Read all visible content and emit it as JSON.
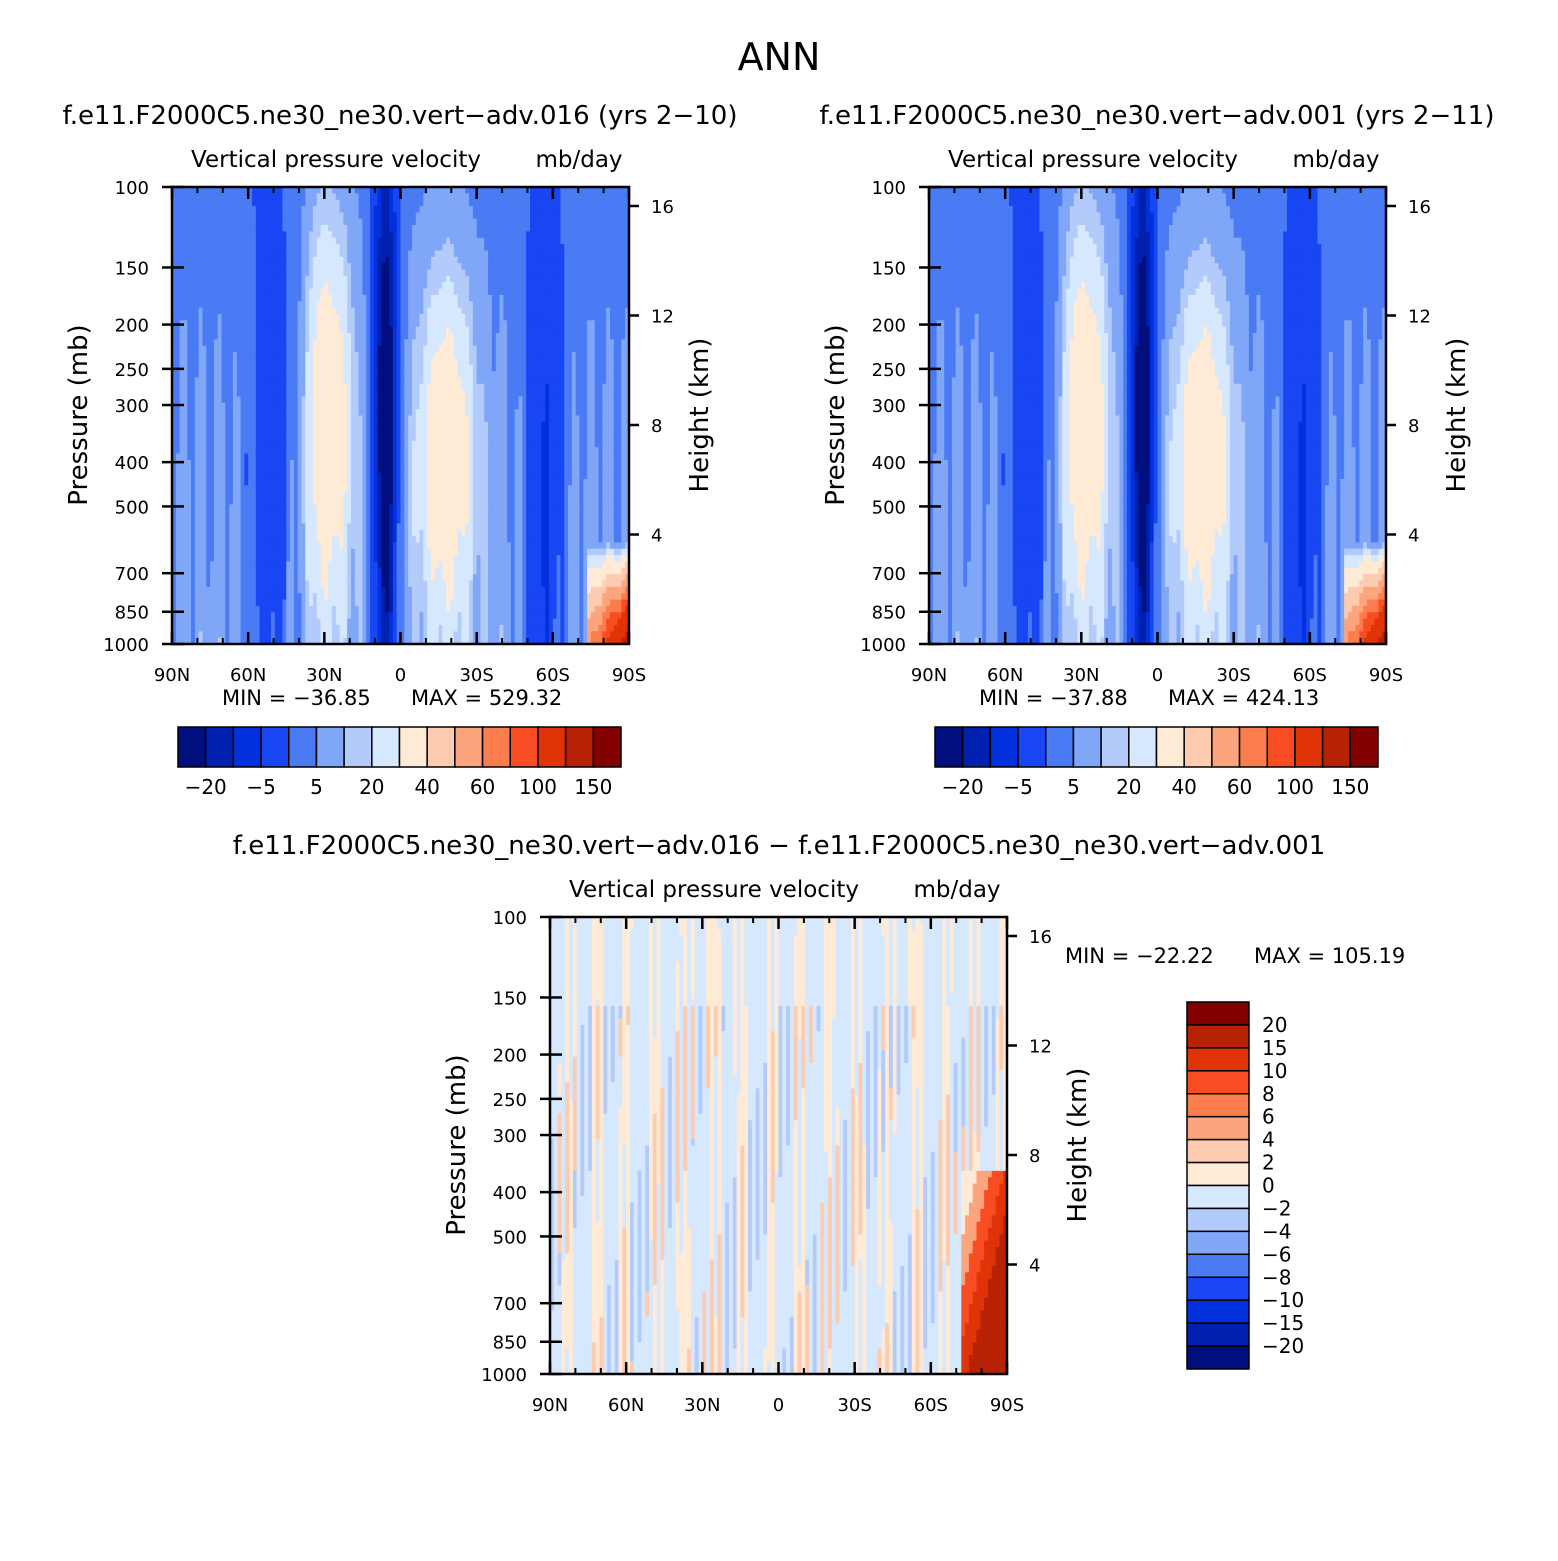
{
  "figure": {
    "title": "ANN"
  },
  "chart_data": [
    {
      "type": "heatmap",
      "title": "f.e11.F2000C5.ne30_ne30.vert−adv.016 (yrs 2−10)",
      "subtitle": "Vertical pressure velocity",
      "units": "mb/day",
      "ylabel": "Pressure (mb)",
      "y2label": "Height (km)",
      "xticks": [
        "90N",
        "60N",
        "30N",
        "0",
        "30S",
        "60S",
        "90S"
      ],
      "yticks": [
        100,
        150,
        200,
        250,
        300,
        400,
        500,
        700,
        850,
        1000
      ],
      "y2ticks": [
        16,
        12,
        8,
        4
      ],
      "xlim": [
        "90N",
        "90S"
      ],
      "ylim": [
        1000,
        100
      ],
      "yscale": "log",
      "min_label": "MIN = −36.85",
      "max_label": "MAX = 529.32",
      "min": -36.85,
      "max": 529.32,
      "colorbar": {
        "orientation": "horizontal",
        "colors": [
          "#000e7e",
          "#0020b0",
          "#0031dc",
          "#1846f2",
          "#4a7af4",
          "#80a6f8",
          "#b3cbfb",
          "#d6e8fe",
          "#ffead6",
          "#fccbb0",
          "#fba47e",
          "#fb7d4e",
          "#f84c22",
          "#e03308",
          "#b82204",
          "#830000"
        ],
        "tick_labels": [
          "−20",
          "−5",
          "5",
          "20",
          "40",
          "60",
          "100",
          "150"
        ]
      }
    },
    {
      "type": "heatmap",
      "title": "f.e11.F2000C5.ne30_ne30.vert−adv.001 (yrs 2−11)",
      "subtitle": "Vertical pressure velocity",
      "units": "mb/day",
      "ylabel": "Pressure (mb)",
      "y2label": "Height (km)",
      "xticks": [
        "90N",
        "60N",
        "30N",
        "0",
        "30S",
        "60S",
        "90S"
      ],
      "yticks": [
        100,
        150,
        200,
        250,
        300,
        400,
        500,
        700,
        850,
        1000
      ],
      "y2ticks": [
        16,
        12,
        8,
        4
      ],
      "xlim": [
        "90N",
        "90S"
      ],
      "ylim": [
        1000,
        100
      ],
      "yscale": "log",
      "min_label": "MIN = −37.88",
      "max_label": "MAX = 424.13",
      "min": -37.88,
      "max": 424.13,
      "colorbar": {
        "orientation": "horizontal",
        "colors": [
          "#000e7e",
          "#0020b0",
          "#0031dc",
          "#1846f2",
          "#4a7af4",
          "#80a6f8",
          "#b3cbfb",
          "#d6e8fe",
          "#ffead6",
          "#fccbb0",
          "#fba47e",
          "#fb7d4e",
          "#f84c22",
          "#e03308",
          "#b82204",
          "#830000"
        ],
        "tick_labels": [
          "−20",
          "−5",
          "5",
          "20",
          "40",
          "60",
          "100",
          "150"
        ]
      }
    },
    {
      "type": "heatmap",
      "title": "f.e11.F2000C5.ne30_ne30.vert−adv.016 − f.e11.F2000C5.ne30_ne30.vert−adv.001",
      "subtitle": "Vertical pressure velocity",
      "units": "mb/day",
      "ylabel": "Pressure (mb)",
      "y2label": "Height (km)",
      "xticks": [
        "90N",
        "60N",
        "30N",
        "0",
        "30S",
        "60S",
        "90S"
      ],
      "yticks": [
        100,
        150,
        200,
        250,
        300,
        400,
        500,
        700,
        850,
        1000
      ],
      "y2ticks": [
        16,
        12,
        8,
        4
      ],
      "xlim": [
        "90N",
        "90S"
      ],
      "ylim": [
        1000,
        100
      ],
      "yscale": "log",
      "min_label": "MIN = −22.22",
      "max_label": "MAX = 105.19",
      "min": -22.22,
      "max": 105.19,
      "colorbar": {
        "orientation": "vertical",
        "colors": [
          "#830000",
          "#b82204",
          "#e03308",
          "#f84c22",
          "#fb7d4e",
          "#fba47e",
          "#fccbb0",
          "#ffead6",
          "#d6e8fe",
          "#b3cbfb",
          "#80a6f8",
          "#4a7af4",
          "#1846f2",
          "#0031dc",
          "#0020b0",
          "#000e7e"
        ],
        "tick_labels": [
          "20",
          "15",
          "10",
          "8",
          "6",
          "4",
          "2",
          "0",
          "−2",
          "−4",
          "−6",
          "−8",
          "−10",
          "−15",
          "−20"
        ]
      }
    }
  ]
}
